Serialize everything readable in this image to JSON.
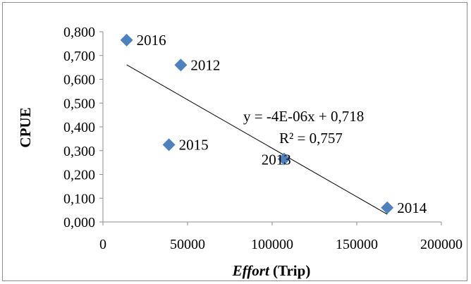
{
  "chart_data": {
    "type": "scatter",
    "title": "",
    "xlabel": "Effort",
    "xlabel_suffix": " (Trip)",
    "ylabel": "CPUE",
    "xlim": [
      0,
      200000
    ],
    "ylim": [
      0,
      0.8
    ],
    "x_ticks": [
      0,
      50000,
      100000,
      150000,
      200000
    ],
    "x_tick_labels": [
      "0",
      "50000",
      "100000",
      "150000",
      "200000"
    ],
    "y_ticks": [
      0,
      0.1,
      0.2,
      0.3,
      0.4,
      0.5,
      0.6,
      0.7,
      0.8
    ],
    "y_tick_labels": [
      "0,000",
      "0,100",
      "0,200",
      "0,300",
      "0,400",
      "0,500",
      "0,600",
      "0,700",
      "0,800"
    ],
    "grid": false,
    "legend": "none",
    "marker": "diamond",
    "marker_color": "#4f81bd",
    "series": [
      {
        "points": [
          {
            "label": "2016",
            "x": 14000,
            "y": 0.765
          },
          {
            "label": "2012",
            "x": 46000,
            "y": 0.66
          },
          {
            "label": "2015",
            "x": 39000,
            "y": 0.325
          },
          {
            "label": "2013",
            "x": 107000,
            "y": 0.265
          },
          {
            "label": "2014",
            "x": 168000,
            "y": 0.06
          }
        ]
      }
    ],
    "trendline": {
      "type": "linear",
      "x_range": [
        14000,
        168000
      ],
      "slope": -4.08e-06,
      "intercept": 0.718,
      "color": "#000000",
      "equation": "y = -4E-06x + 0,718",
      "r_squared": "R² = 0,757"
    }
  }
}
